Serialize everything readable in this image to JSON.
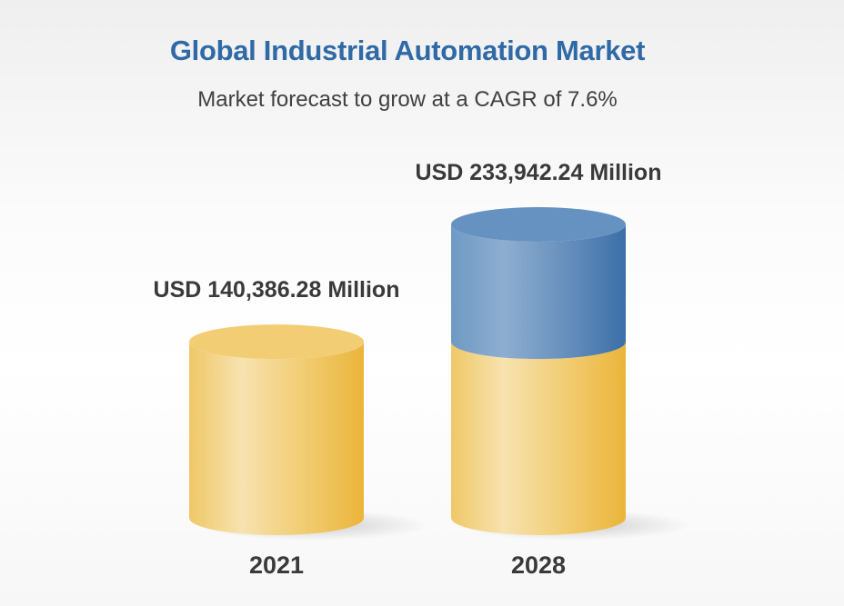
{
  "chart_data": {
    "type": "bar",
    "title": "Global Industrial Automation Market",
    "subtitle": "Market forecast to grow at a CAGR of 7.6%",
    "categories": [
      "2021",
      "2028"
    ],
    "values": [
      140386.28,
      233942.24
    ],
    "data_labels": [
      "USD 140,386.28 Million",
      "USD 233,942.24 Million"
    ],
    "unit": "USD Million",
    "style": "3d-cylinder",
    "colors": {
      "base": "#eebd47",
      "growth": "#4a7db3",
      "title": "#2f6aa6"
    },
    "grid": false
  }
}
